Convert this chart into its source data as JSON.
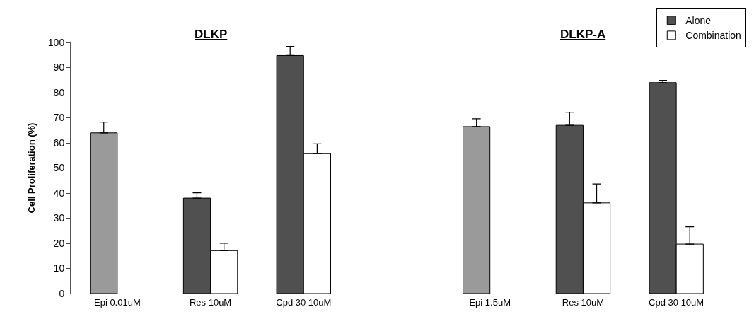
{
  "chart_data": {
    "type": "bar",
    "ylabel": "Cell Proliferation (%)",
    "categories": [
      "Epi 0.01uM",
      "Res 10uM",
      "Cpd 30 10uM",
      null,
      "Epi 1.5uM",
      "Res 10uM",
      "Cpd 30 10uM"
    ],
    "series": [
      {
        "color": "#9a9a9a",
        "values": [
          64,
          null,
          null,
          null,
          66.5,
          null,
          null
        ],
        "errors": [
          [
            64,
            68.3
          ],
          null,
          null,
          null,
          [
            66.5,
            69.6
          ],
          null,
          null
        ]
      },
      {
        "name": "Alone",
        "color": "#505050",
        "values": [
          null,
          38,
          94.8,
          null,
          null,
          67,
          84
        ],
        "errors": [
          null,
          [
            38,
            40.1
          ],
          [
            94.8,
            98.4
          ],
          null,
          null,
          [
            67,
            72.2
          ],
          [
            84,
            84.9
          ]
        ]
      },
      {
        "name": "Combination",
        "color": "#ffffff",
        "values": [
          null,
          17.1,
          55.7,
          null,
          null,
          36.1,
          19.7
        ],
        "errors": [
          null,
          [
            17.1,
            20
          ],
          [
            55.7,
            59.6
          ],
          null,
          null,
          [
            36.1,
            43.6
          ],
          [
            19.7,
            26.6
          ]
        ]
      }
    ],
    "annotations": [
      "DLKP",
      "DLKP-A"
    ],
    "ylim": [
      0,
      100
    ],
    "yticks": [
      0,
      10,
      20,
      30,
      40,
      50,
      60,
      70,
      80,
      90,
      100
    ],
    "legend": "top right"
  }
}
